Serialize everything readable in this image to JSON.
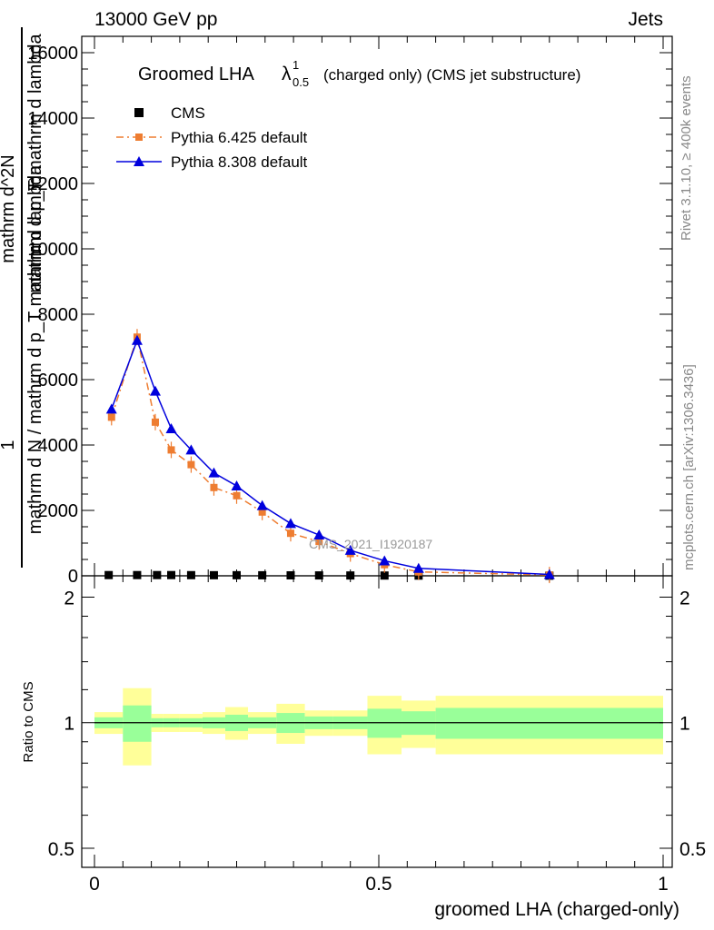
{
  "header": {
    "left": "13000 GeV pp",
    "right": "Jets"
  },
  "side": {
    "rivet": "Rivet 3.1.10, ≥ 400k events",
    "mcplots": "mcplots.cern.ch [arXiv:1306.3436]"
  },
  "chart_data": {
    "type": "line",
    "title": "Groomed LHA",
    "title_symbol": "λ",
    "title_sup": "1",
    "title_sub": "0.5",
    "subtitle": "(charged only) (CMS jet substructure)",
    "watermark": "CMS_2021_I1920187",
    "ylabel_main": "mathrm d N / mathrm d p_T mathrm d lambda",
    "ylabel_num": "mathrm d^2N",
    "ylabel_den": "mathrm d p_T mathrm d lambda",
    "ylabel_one": "1",
    "ylabel_ratio": "Ratio to CMS",
    "xlabel": "groomed LHA (charged-only)",
    "xlim": [
      0,
      1
    ],
    "ylim": [
      0,
      16500
    ],
    "ratio_ylim": [
      0.45,
      2.25
    ],
    "x_ticks": [
      "0",
      "0.5",
      "1"
    ],
    "y_ticks": [
      "0",
      "2000",
      "4000",
      "6000",
      "8000",
      "10000",
      "12000",
      "14000",
      "16000"
    ],
    "ratio_ticks": [
      "0.5",
      "1",
      "2"
    ],
    "legend_position": "top-left",
    "bin_edges": [
      0.0,
      0.05,
      0.1,
      0.12,
      0.15,
      0.19,
      0.23,
      0.27,
      0.32,
      0.37,
      0.42,
      0.48,
      0.54,
      0.6,
      1.0
    ],
    "series": [
      {
        "name": "CMS",
        "color": "#000000",
        "marker": "square",
        "x": [
          0.025,
          0.075,
          0.11,
          0.135,
          0.17,
          0.21,
          0.25,
          0.295,
          0.345,
          0.395,
          0.45,
          0.51,
          0.57,
          0.8
        ],
        "y": [
          22,
          22,
          22,
          22,
          20,
          18,
          18,
          16,
          14,
          12,
          10,
          8,
          6,
          3
        ]
      },
      {
        "name": "Pythia 6.425 default",
        "color": "#ee7d31",
        "marker": "square",
        "dash": "dashdot",
        "x": [
          0.03,
          0.075,
          0.107,
          0.135,
          0.17,
          0.21,
          0.25,
          0.295,
          0.345,
          0.395,
          0.45,
          0.51,
          0.57,
          0.8
        ],
        "y": [
          4850,
          7300,
          4700,
          3850,
          3400,
          2700,
          2450,
          1950,
          1300,
          1050,
          680,
          340,
          120,
          25
        ]
      },
      {
        "name": "Pythia 8.308 default",
        "color": "#0000dd",
        "marker": "triangle",
        "x": [
          0.03,
          0.075,
          0.107,
          0.135,
          0.17,
          0.21,
          0.25,
          0.295,
          0.345,
          0.395,
          0.45,
          0.51,
          0.57,
          0.8
        ],
        "y": [
          5100,
          7200,
          5650,
          4500,
          3850,
          3150,
          2750,
          2150,
          1600,
          1250,
          780,
          460,
          230,
          40
        ]
      }
    ],
    "ratio_bands": {
      "inner_color": "#99ff99",
      "outer_color": "#ffff99",
      "inner_low": [
        0.97,
        0.9,
        0.975,
        0.975,
        0.975,
        0.97,
        0.955,
        0.97,
        0.945,
        0.965,
        0.965,
        0.92,
        0.935,
        0.915
      ],
      "inner_high": [
        1.03,
        1.1,
        1.025,
        1.025,
        1.025,
        1.03,
        1.045,
        1.03,
        1.055,
        1.035,
        1.035,
        1.08,
        1.065,
        1.085
      ],
      "outer_low": [
        0.94,
        0.79,
        0.95,
        0.95,
        0.95,
        0.94,
        0.91,
        0.94,
        0.89,
        0.93,
        0.93,
        0.84,
        0.87,
        0.84
      ],
      "outer_high": [
        1.06,
        1.21,
        1.05,
        1.05,
        1.05,
        1.06,
        1.09,
        1.06,
        1.11,
        1.07,
        1.07,
        1.16,
        1.13,
        1.16
      ]
    }
  }
}
